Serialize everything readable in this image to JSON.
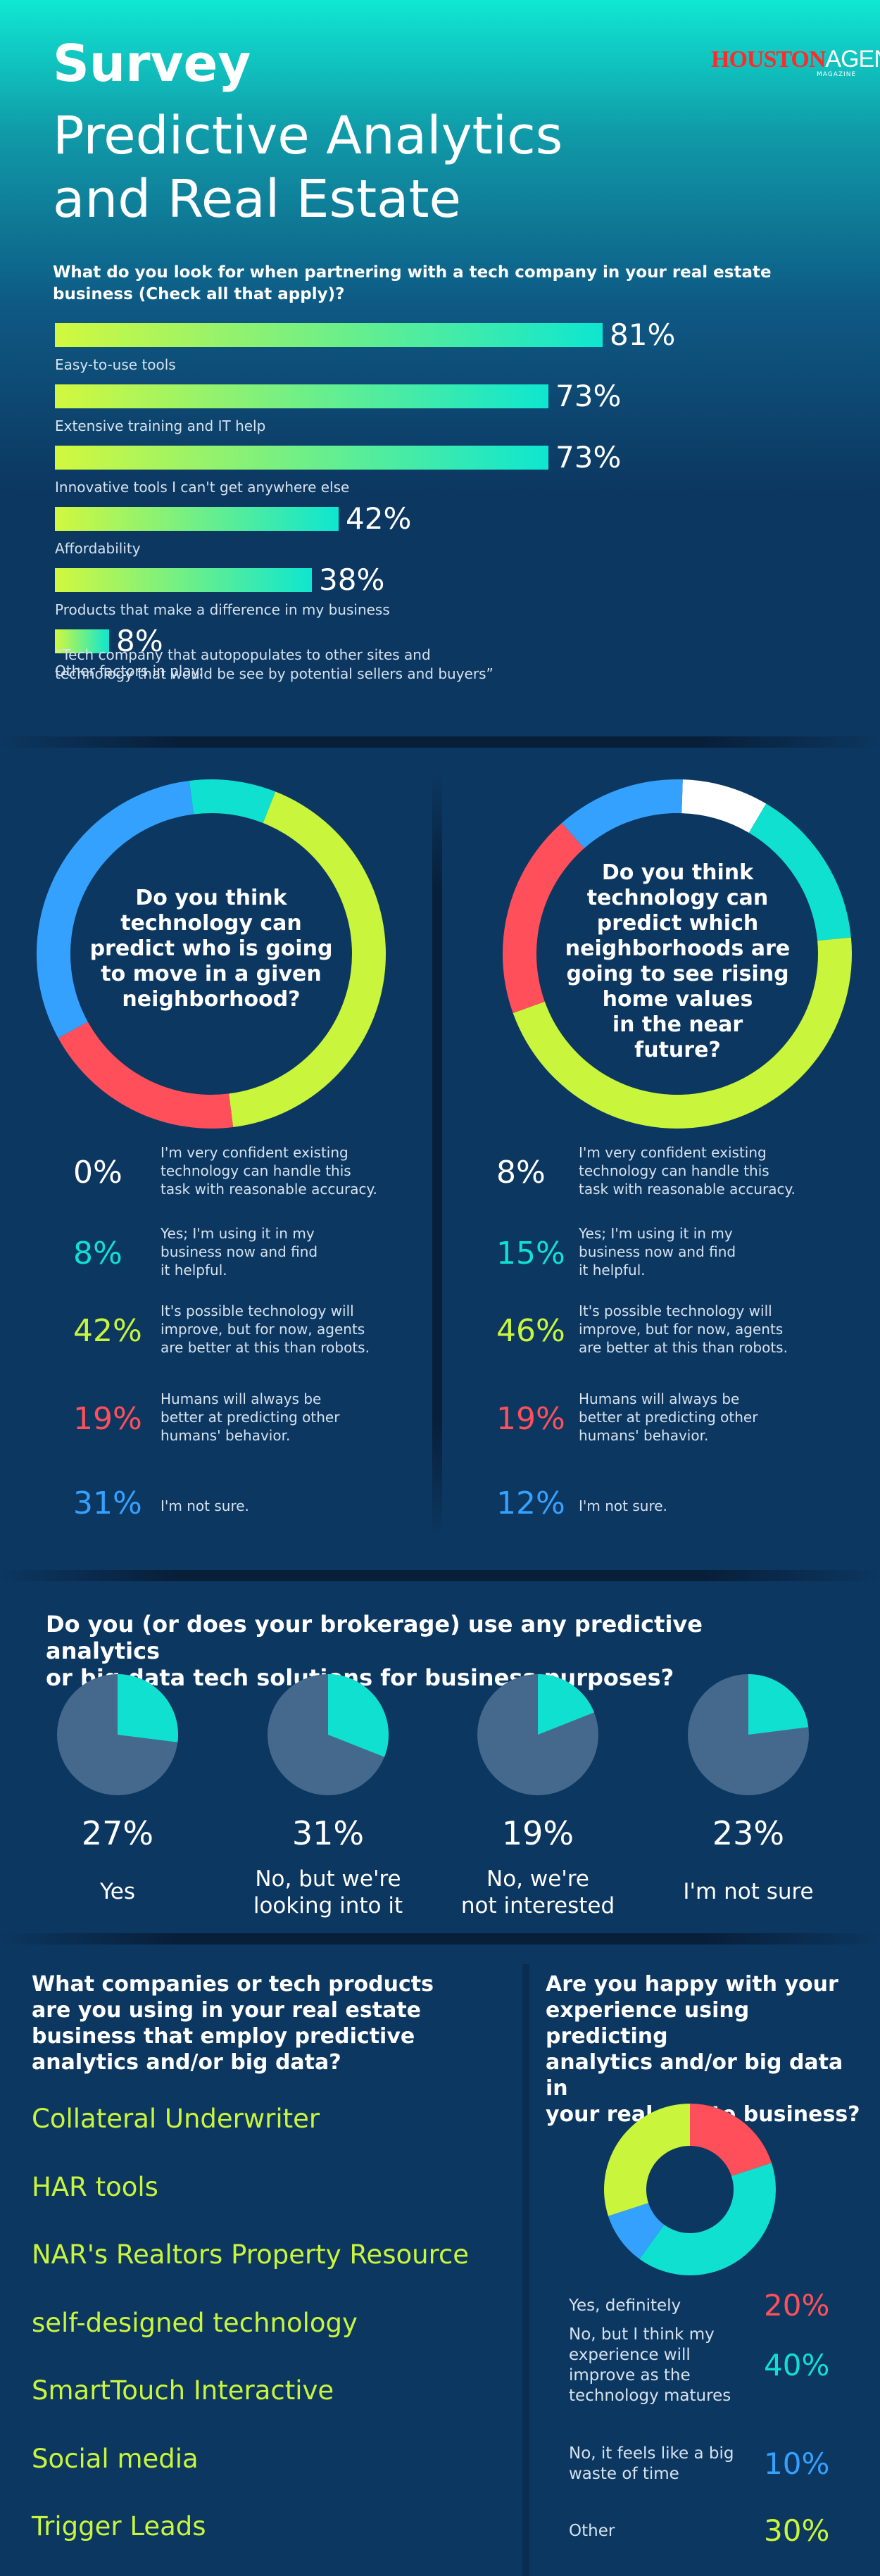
{
  "header": {
    "survey_word": "Survey",
    "title_line1": "Predictive Analytics",
    "title_line2": "and Real Estate",
    "logo_houston": "HOUSTON",
    "logo_agent": "AGENT",
    "logo_magazine": "MAGAZINE"
  },
  "colors": {
    "lime": "#c9f53c",
    "teal": "#10e0d0",
    "red": "#ff4f5a",
    "blue": "#34a1ff",
    "white": "#ffffff",
    "pie_gray": "#45698c",
    "background": "#0c3760"
  },
  "chart_data": [
    {
      "type": "bar",
      "title": "What do you look for when partnering with a tech company in your real estate business (Check all that apply)?",
      "categories": [
        "Easy-to-use tools",
        "Extensive training and IT help",
        "Innovative tools I can't get anywhere else",
        "Affordability",
        "Products that make a difference in my business",
        "Other factors in play:"
      ],
      "values": [
        81,
        73,
        73,
        42,
        38,
        8
      ],
      "value_labels": [
        "81%",
        "73%",
        "73%",
        "42%",
        "38%",
        "8%"
      ],
      "xlim": [
        0,
        100
      ],
      "note_line1": "“Tech company that autopopulates to other sites and",
      "note_line2": "technology that would be see by potential sellers and buyers”"
    },
    {
      "type": "pie",
      "title_lines": [
        "Do you think",
        "technology can",
        "predict who is going",
        "to move in a given",
        "neighborhood?"
      ],
      "slices": [
        {
          "label_lines": [
            "I'm very confident existing",
            "technology can handle this",
            "task with reasonable accuracy."
          ],
          "value": 0,
          "pct": "0%",
          "color": "#ffffff"
        },
        {
          "label_lines": [
            "Yes; I'm using it in my",
            "business now and find",
            "it helpful."
          ],
          "value": 8,
          "pct": "8%",
          "color": "#10e0d0"
        },
        {
          "label_lines": [
            "It's possible technology will",
            "improve, but for now, agents",
            "are better at this than robots."
          ],
          "value": 42,
          "pct": "42%",
          "color": "#c9f53c"
        },
        {
          "label_lines": [
            "Humans will always be",
            "better at predicting other",
            "humans' behavior."
          ],
          "value": 19,
          "pct": "19%",
          "color": "#ff4f5a"
        },
        {
          "label_lines": [
            "I'm not sure."
          ],
          "value": 31,
          "pct": "31%",
          "color": "#34a1ff"
        }
      ]
    },
    {
      "type": "pie",
      "title_lines": [
        "Do you think",
        "technology can",
        "predict which",
        "neighborhoods are",
        "going to see rising",
        "home values",
        "in the near",
        "future?"
      ],
      "slices": [
        {
          "label_lines": [
            "I'm very confident existing",
            "technology can handle this",
            "task with reasonable accuracy."
          ],
          "value": 8,
          "pct": "8%",
          "color": "#ffffff"
        },
        {
          "label_lines": [
            "Yes; I'm using it in my",
            "business now and find",
            "it helpful."
          ],
          "value": 15,
          "pct": "15%",
          "color": "#10e0d0"
        },
        {
          "label_lines": [
            "It's possible technology will",
            "improve, but for now, agents",
            "are better at this than robots."
          ],
          "value": 46,
          "pct": "46%",
          "color": "#c9f53c"
        },
        {
          "label_lines": [
            "Humans will always be",
            "better at predicting other",
            "humans' behavior."
          ],
          "value": 19,
          "pct": "19%",
          "color": "#ff4f5a"
        },
        {
          "label_lines": [
            "I'm not sure."
          ],
          "value": 12,
          "pct": "12%",
          "color": "#34a1ff"
        }
      ]
    },
    {
      "type": "pie",
      "title_lines": [
        "Do you (or does your brokerage) use any predictive analytics",
        "or big data tech solutions for business purposes?"
      ],
      "items": [
        {
          "value": 27,
          "pct": "27%",
          "label_lines": [
            "Yes"
          ]
        },
        {
          "value": 31,
          "pct": "31%",
          "label_lines": [
            "No, but we're",
            "looking into it"
          ]
        },
        {
          "value": 19,
          "pct": "19%",
          "label_lines": [
            "No, we're",
            "not interested"
          ]
        },
        {
          "value": 23,
          "pct": "23%",
          "label_lines": [
            "I'm not sure"
          ]
        }
      ]
    },
    {
      "type": "pie",
      "title_lines": [
        "Are you happy with your",
        "experience using predicting",
        "analytics and/or big data in",
        "your real estate business?"
      ],
      "slices": [
        {
          "label_lines": [
            "Yes, definitely"
          ],
          "value": 20,
          "pct": "20%",
          "color": "#ff4f5a"
        },
        {
          "label_lines": [
            "No, but I think my",
            "experience will",
            "improve as the",
            "technology matures"
          ],
          "value": 40,
          "pct": "40%",
          "color": "#10e0d0"
        },
        {
          "label_lines": [
            "No, it feels like a big",
            "waste of time"
          ],
          "value": 10,
          "pct": "10%",
          "color": "#34a1ff"
        },
        {
          "label_lines": [
            "Other"
          ],
          "value": 30,
          "pct": "30%",
          "color": "#c9f53c"
        }
      ]
    }
  ],
  "companies": {
    "title_lines": [
      "What companies or tech products",
      "are you using in your real estate",
      "business that employ predictive",
      "analytics and/or big data?"
    ],
    "items": [
      "Collateral Underwriter",
      "HAR tools",
      "NAR's Realtors Property Resource",
      "self-designed technology",
      "SmartTouch Interactive",
      "Social media",
      "Trigger Leads"
    ]
  }
}
